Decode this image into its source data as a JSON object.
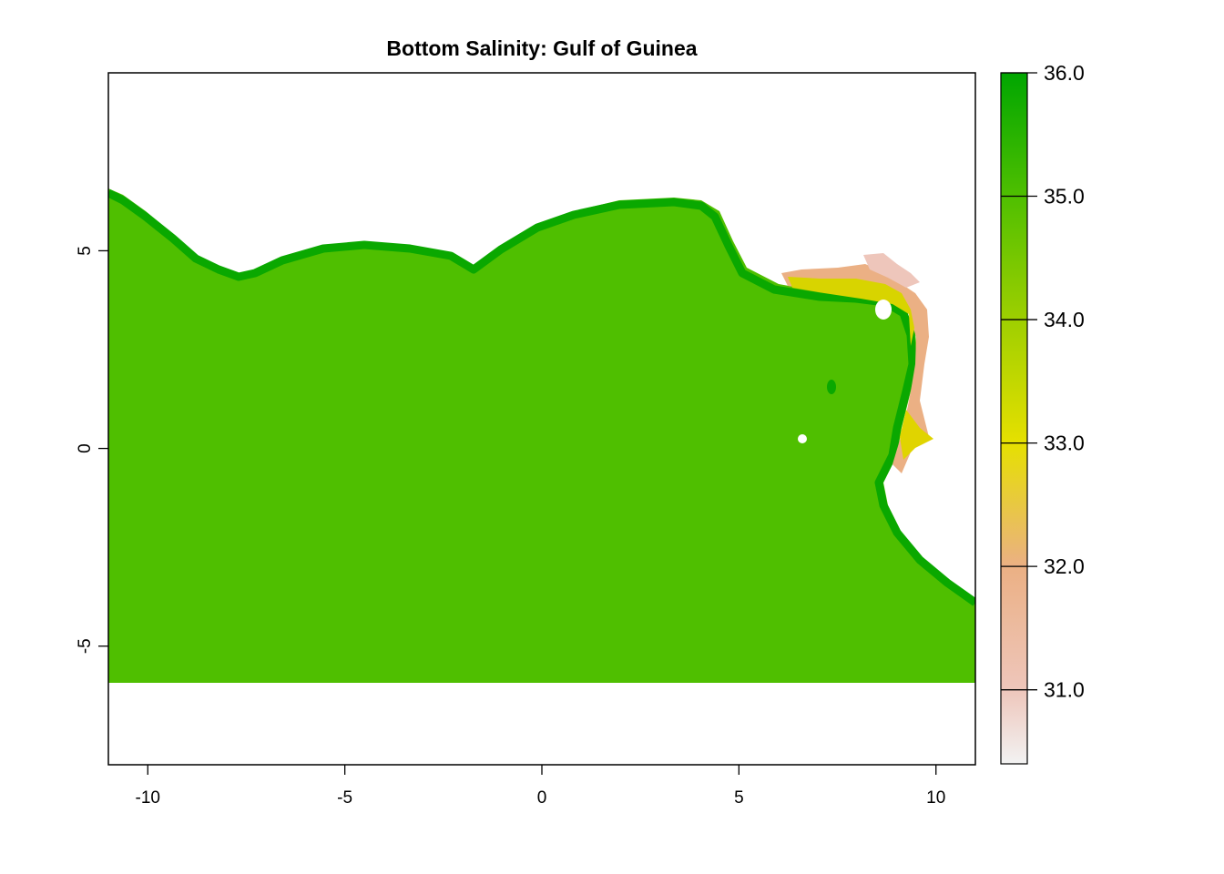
{
  "chart_data": {
    "type": "heatmap",
    "title": "Bottom Salinity: Gulf of Guinea",
    "xlabel": "",
    "ylabel": "",
    "xlim": [
      -11,
      11
    ],
    "ylim": [
      -8,
      9.5
    ],
    "x_ticks": [
      -10,
      -5,
      0,
      5,
      10
    ],
    "x_tick_labels": [
      "-10",
      "-5",
      "0",
      "5",
      "10"
    ],
    "y_ticks": [
      -5,
      0,
      5
    ],
    "y_tick_labels": [
      "-5",
      "0",
      "5"
    ],
    "data_extent": {
      "xmin": -11,
      "xmax": 11,
      "ymin": -6,
      "ymax": 6.5
    },
    "typical_open_ocean_value": 34.8,
    "shelf_edge_value": 35.3,
    "coastal_low_values": [
      31.0,
      32.0,
      33.0
    ],
    "colorbar": {
      "min": 30.4,
      "max": 36.0,
      "ticks": [
        31.0,
        32.0,
        33.0,
        34.0,
        35.0,
        36.0
      ],
      "tick_labels": [
        "31.0",
        "32.0",
        "33.0",
        "34.0",
        "35.0",
        "36.0"
      ],
      "color_stops": [
        {
          "value": 30.4,
          "color": "#f2f2f2"
        },
        {
          "value": 31.0,
          "color": "#eec6bb"
        },
        {
          "value": 32.0,
          "color": "#ebb084"
        },
        {
          "value": 33.0,
          "color": "#e6e000"
        },
        {
          "value": 34.0,
          "color": "#9ecf00"
        },
        {
          "value": 35.0,
          "color": "#4fbf00"
        },
        {
          "value": 36.0,
          "color": "#00a600"
        }
      ]
    },
    "grid": false,
    "legend": "right colorbar"
  }
}
